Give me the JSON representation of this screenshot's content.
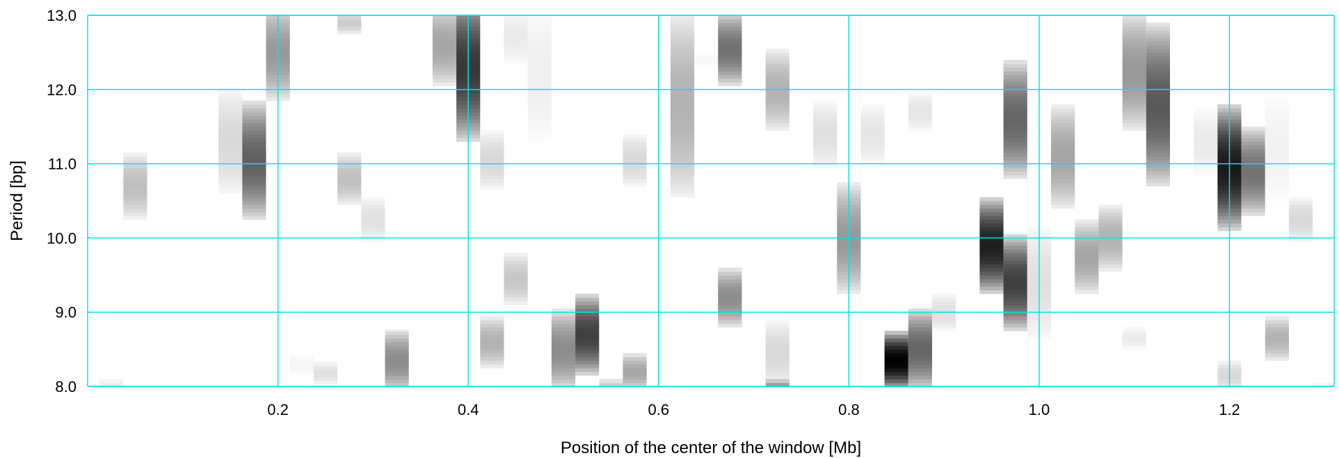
{
  "chart_data": {
    "type": "heatmap",
    "xlabel": "Position of the center of the window [Mb]",
    "ylabel": "Period [bp]",
    "xlim": [
      0.0,
      1.31
    ],
    "ylim": [
      8.0,
      13.0
    ],
    "x_ticks": [
      0.2,
      0.4,
      0.6,
      0.8,
      1.0,
      1.2
    ],
    "x_tick_labels": [
      "0.2",
      "0.4",
      "0.6",
      "0.8",
      "1.0",
      "1.2"
    ],
    "y_ticks": [
      8.0,
      9.0,
      10.0,
      11.0,
      12.0,
      13.0
    ],
    "y_tick_labels": [
      "8.0",
      "9.0",
      "10.0",
      "11.0",
      "12.0",
      "13.0"
    ],
    "grid": true,
    "grid_color": "#00e5e5",
    "colormap": "white-to-black (intensity 0-1)",
    "column_width_mb": 0.025,
    "blobs": [
      {
        "x": 0.025,
        "center": 8.0,
        "half": 0.1,
        "intensity": 0.08
      },
      {
        "x": 0.05,
        "center": 10.7,
        "half": 0.45,
        "intensity": 0.25
      },
      {
        "x": 0.15,
        "center": 11.3,
        "half": 0.7,
        "intensity": 0.15
      },
      {
        "x": 0.175,
        "center": 11.05,
        "half": 0.8,
        "intensity": 0.62
      },
      {
        "x": 0.2,
        "center": 12.5,
        "half": 0.65,
        "intensity": 0.4
      },
      {
        "x": 0.225,
        "center": 8.3,
        "half": 0.12,
        "intensity": 0.04
      },
      {
        "x": 0.25,
        "center": 8.18,
        "half": 0.15,
        "intensity": 0.12
      },
      {
        "x": 0.275,
        "center": 12.9,
        "half": 0.15,
        "intensity": 0.2
      },
      {
        "x": 0.275,
        "center": 10.8,
        "half": 0.35,
        "intensity": 0.25
      },
      {
        "x": 0.3,
        "center": 10.25,
        "half": 0.3,
        "intensity": 0.12
      },
      {
        "x": 0.325,
        "center": 8.35,
        "half": 0.42,
        "intensity": 0.45
      },
      {
        "x": 0.375,
        "center": 12.6,
        "half": 0.55,
        "intensity": 0.35
      },
      {
        "x": 0.4,
        "center": 12.3,
        "half": 1.0,
        "intensity": 0.78
      },
      {
        "x": 0.425,
        "center": 11.05,
        "half": 0.4,
        "intensity": 0.15
      },
      {
        "x": 0.425,
        "center": 8.6,
        "half": 0.35,
        "intensity": 0.3
      },
      {
        "x": 0.45,
        "center": 12.7,
        "half": 0.35,
        "intensity": 0.08
      },
      {
        "x": 0.475,
        "center": 12.2,
        "half": 0.9,
        "intensity": 0.06
      },
      {
        "x": 0.45,
        "center": 9.45,
        "half": 0.35,
        "intensity": 0.22
      },
      {
        "x": 0.5,
        "center": 8.5,
        "half": 0.55,
        "intensity": 0.45
      },
      {
        "x": 0.525,
        "center": 8.7,
        "half": 0.55,
        "intensity": 0.75
      },
      {
        "x": 0.55,
        "center": 8.0,
        "half": 0.1,
        "intensity": 0.2
      },
      {
        "x": 0.575,
        "center": 8.2,
        "half": 0.25,
        "intensity": 0.35
      },
      {
        "x": 0.575,
        "center": 11.05,
        "half": 0.35,
        "intensity": 0.15
      },
      {
        "x": 0.625,
        "center": 11.8,
        "half": 1.25,
        "intensity": 0.3
      },
      {
        "x": 0.65,
        "center": 12.4,
        "half": 0.1,
        "intensity": 0.03
      },
      {
        "x": 0.675,
        "center": 12.55,
        "half": 0.5,
        "intensity": 0.55
      },
      {
        "x": 0.675,
        "center": 9.2,
        "half": 0.4,
        "intensity": 0.45
      },
      {
        "x": 0.725,
        "center": 12.0,
        "half": 0.55,
        "intensity": 0.3
      },
      {
        "x": 0.725,
        "center": 8.45,
        "half": 0.45,
        "intensity": 0.15
      },
      {
        "x": 0.725,
        "center": 8.0,
        "half": 0.1,
        "intensity": 0.4
      },
      {
        "x": 0.775,
        "center": 11.4,
        "half": 0.45,
        "intensity": 0.12
      },
      {
        "x": 0.8,
        "center": 10.0,
        "half": 0.75,
        "intensity": 0.4
      },
      {
        "x": 0.825,
        "center": 11.4,
        "half": 0.4,
        "intensity": 0.1
      },
      {
        "x": 0.85,
        "center": 8.35,
        "half": 0.4,
        "intensity": 1.0
      },
      {
        "x": 0.875,
        "center": 11.7,
        "half": 0.25,
        "intensity": 0.1
      },
      {
        "x": 0.875,
        "center": 8.5,
        "half": 0.55,
        "intensity": 0.6
      },
      {
        "x": 0.9,
        "center": 9.0,
        "half": 0.25,
        "intensity": 0.12
      },
      {
        "x": 0.95,
        "center": 9.9,
        "half": 0.65,
        "intensity": 0.88
      },
      {
        "x": 0.975,
        "center": 11.6,
        "half": 0.8,
        "intensity": 0.6
      },
      {
        "x": 0.975,
        "center": 9.4,
        "half": 0.65,
        "intensity": 0.75
      },
      {
        "x": 1.0,
        "center": 9.4,
        "half": 0.75,
        "intensity": 0.12
      },
      {
        "x": 1.025,
        "center": 11.1,
        "half": 0.7,
        "intensity": 0.35
      },
      {
        "x": 1.05,
        "center": 9.75,
        "half": 0.5,
        "intensity": 0.35
      },
      {
        "x": 1.075,
        "center": 10.0,
        "half": 0.45,
        "intensity": 0.3
      },
      {
        "x": 1.1,
        "center": 12.25,
        "half": 0.8,
        "intensity": 0.4
      },
      {
        "x": 1.1,
        "center": 8.65,
        "half": 0.15,
        "intensity": 0.08
      },
      {
        "x": 1.125,
        "center": 11.8,
        "half": 1.1,
        "intensity": 0.65
      },
      {
        "x": 1.175,
        "center": 11.3,
        "half": 0.45,
        "intensity": 0.08
      },
      {
        "x": 1.2,
        "center": 10.95,
        "half": 0.85,
        "intensity": 0.9
      },
      {
        "x": 1.2,
        "center": 8.15,
        "half": 0.2,
        "intensity": 0.15
      },
      {
        "x": 1.225,
        "center": 10.9,
        "half": 0.6,
        "intensity": 0.55
      },
      {
        "x": 1.25,
        "center": 11.2,
        "half": 0.7,
        "intensity": 0.05
      },
      {
        "x": 1.25,
        "center": 8.65,
        "half": 0.3,
        "intensity": 0.3
      },
      {
        "x": 1.275,
        "center": 10.25,
        "half": 0.3,
        "intensity": 0.15
      },
      {
        "x": 1.3,
        "center": 8.0,
        "half": 0.05,
        "intensity": 0.05
      }
    ]
  }
}
